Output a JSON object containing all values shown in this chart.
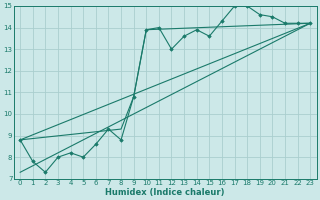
{
  "title": "",
  "xlabel": "Humidex (Indice chaleur)",
  "ylabel": "",
  "bg_color": "#cce8e8",
  "grid_color": "#aacece",
  "line_color": "#1a7a6a",
  "xlim": [
    -0.5,
    23.5
  ],
  "ylim": [
    7,
    15
  ],
  "xticks": [
    0,
    1,
    2,
    3,
    4,
    5,
    6,
    7,
    8,
    9,
    10,
    11,
    12,
    13,
    14,
    15,
    16,
    17,
    18,
    19,
    20,
    21,
    22,
    23
  ],
  "yticks": [
    7,
    8,
    9,
    10,
    11,
    12,
    13,
    14,
    15
  ],
  "line1_x": [
    0,
    1,
    2,
    3,
    4,
    5,
    6,
    7,
    8,
    9,
    10,
    11,
    12,
    13,
    14,
    15,
    16,
    17,
    18,
    19,
    20,
    21,
    22,
    23
  ],
  "line1_y": [
    8.8,
    7.8,
    7.3,
    8.0,
    8.2,
    8.0,
    8.6,
    9.3,
    8.8,
    10.8,
    13.9,
    14.0,
    13.0,
    13.6,
    13.9,
    13.6,
    14.3,
    15.0,
    15.0,
    14.6,
    14.5,
    14.2,
    14.2,
    14.2
  ],
  "line2_x": [
    0,
    8,
    9,
    10,
    23
  ],
  "line2_y": [
    8.8,
    9.3,
    10.8,
    13.9,
    14.2
  ],
  "line3_x": [
    0,
    23
  ],
  "line3_y": [
    8.8,
    14.2
  ],
  "line4_x": [
    0,
    23
  ],
  "line4_y": [
    7.3,
    14.2
  ],
  "label_fontsize": 5.0,
  "xlabel_fontsize": 6.0
}
